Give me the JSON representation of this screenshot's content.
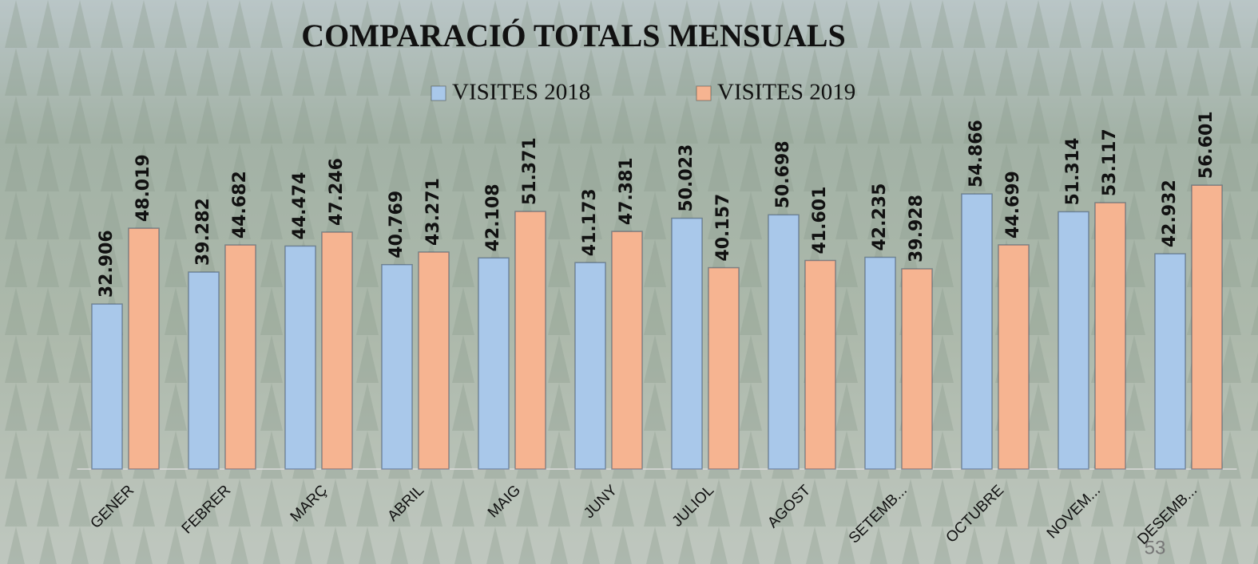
{
  "chart_data": {
    "type": "bar",
    "title": "COMPARACIÓ TOTALS MENSUALS",
    "categories": [
      "GENER",
      "FEBRER",
      "MARÇ",
      "ABRIL",
      "MAIG",
      "JUNY",
      "JULIOL",
      "AGOST",
      "SETEMB...",
      "OCTUBRE",
      "NOVEM...",
      "DESEMB..."
    ],
    "series": [
      {
        "name": "VISITES 2018",
        "color": "#a9c8ea",
        "values": [
          32906,
          39282,
          44474,
          40769,
          42108,
          41173,
          50023,
          50698,
          42235,
          54866,
          51314,
          42932
        ],
        "value_labels": [
          "32.906",
          "39.282",
          "44.474",
          "40.769",
          "42.108",
          "41.173",
          "50.023",
          "50.698",
          "42.235",
          "54.866",
          "51.314",
          "42.932"
        ]
      },
      {
        "name": "VISITES 2019",
        "color": "#f6b491",
        "values": [
          48019,
          44682,
          47246,
          43271,
          51371,
          47381,
          40157,
          41601,
          39928,
          44699,
          53117,
          56601
        ],
        "value_labels": [
          "48.019",
          "44.682",
          "47.246",
          "43.271",
          "51.371",
          "47.381",
          "40.157",
          "41.601",
          "39.928",
          "44.699",
          "53.117",
          "56.601"
        ]
      }
    ],
    "ylim": [
      0,
      70000
    ],
    "legend": "top",
    "page_number": "53"
  }
}
